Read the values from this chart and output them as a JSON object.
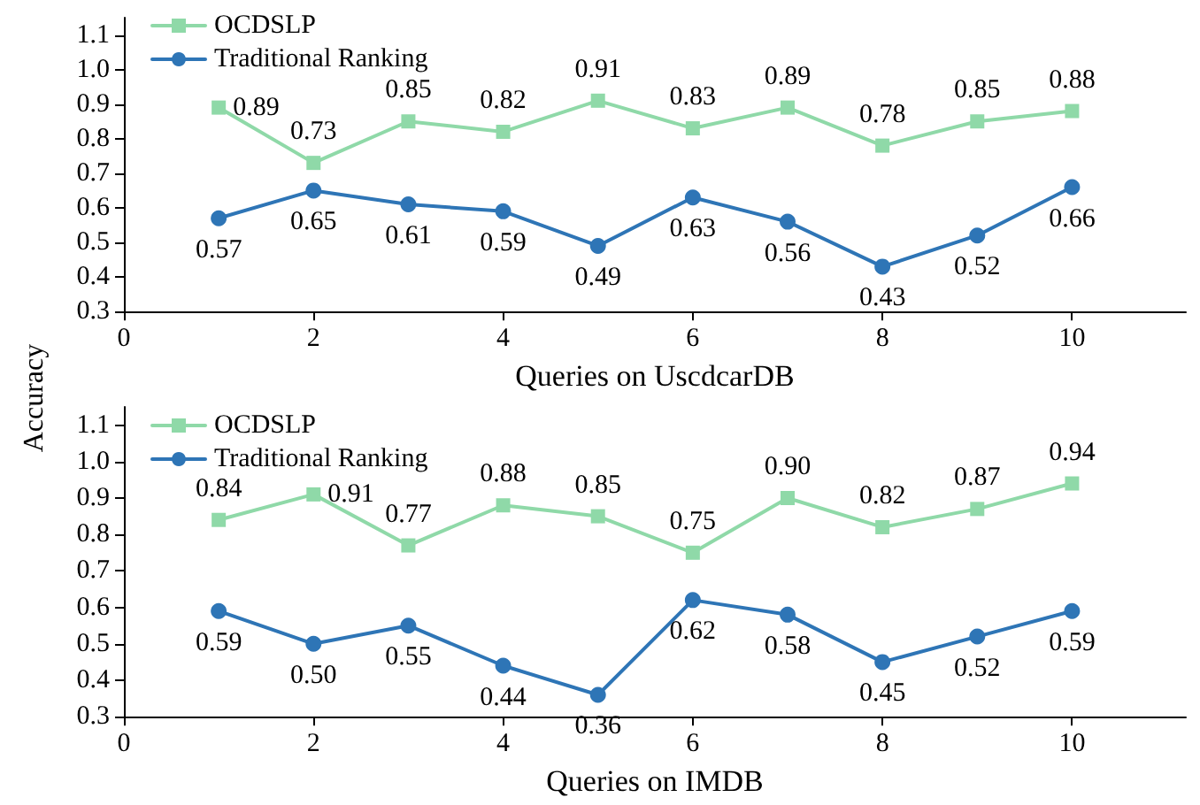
{
  "chart_data": [
    {
      "type": "line",
      "xlabel": "Queries on UscdcarDB",
      "ylabel": "Accuracy",
      "x": [
        1,
        2,
        3,
        4,
        5,
        6,
        7,
        8,
        9,
        10
      ],
      "series": [
        {
          "name": "OCDSLP",
          "color": "#8fd9a8",
          "marker": "square",
          "values": [
            0.89,
            0.73,
            0.85,
            0.82,
            0.91,
            0.83,
            0.89,
            0.78,
            0.85,
            0.88
          ],
          "value_labels": [
            "0.89",
            "0.73",
            "0.85",
            "0.82",
            "0.91",
            "0.83",
            "0.89",
            "0.78",
            "0.85",
            "0.88"
          ]
        },
        {
          "name": "Traditional Ranking",
          "color": "#2e75b6",
          "marker": "circle",
          "values": [
            0.57,
            0.65,
            0.61,
            0.59,
            0.49,
            0.63,
            0.56,
            0.43,
            0.52,
            0.66
          ],
          "value_labels": [
            "0.57",
            "0.65",
            "0.61",
            "0.59",
            "0.49",
            "0.63",
            "0.56",
            "0.43",
            "0.52",
            "0.66"
          ]
        }
      ],
      "xlim": [
        0,
        11.2
      ],
      "xticks": [
        0,
        2,
        4,
        6,
        8,
        10
      ],
      "ylim": [
        0.3,
        1.15
      ],
      "yticks": [
        0.3,
        0.4,
        0.5,
        0.6,
        0.7,
        0.8,
        0.9,
        {
          "value": 1,
          "label": "1.0"
        },
        1.1
      ],
      "grid": false,
      "legend": "top left"
    },
    {
      "type": "line",
      "xlabel": "Queries on IMDB",
      "x": [
        1,
        2,
        3,
        4,
        5,
        6,
        7,
        8,
        9,
        10
      ],
      "series": [
        {
          "name": "OCDSLP",
          "color": "#8fd9a8",
          "marker": "square",
          "values": [
            0.84,
            0.91,
            0.77,
            0.88,
            0.85,
            0.75,
            0.9,
            0.82,
            0.87,
            0.94
          ],
          "value_labels": [
            "0.84",
            "0.91",
            "0.77",
            "0.88",
            "0.85",
            "0.75",
            "0.90",
            "0.82",
            "0.87",
            "0.94"
          ]
        },
        {
          "name": "Traditional Ranking",
          "color": "#2e75b6",
          "marker": "circle",
          "values": [
            0.59,
            0.5,
            0.55,
            0.44,
            0.36,
            0.62,
            0.58,
            0.45,
            0.52,
            0.59
          ],
          "value_labels": [
            "0.59",
            "0.50",
            "0.55",
            "0.44",
            "0.36",
            "0.62",
            "0.58",
            "0.45",
            "0.52",
            "0.59"
          ]
        }
      ],
      "xlim": [
        0,
        11.2
      ],
      "xticks": [
        0,
        2,
        4,
        6,
        8,
        10
      ],
      "ylim": [
        0.3,
        1.15
      ],
      "yticks": [
        0.3,
        0.4,
        0.5,
        0.6,
        0.7,
        0.8,
        0.9,
        {
          "value": 1,
          "label": "1.0"
        },
        1.1
      ],
      "grid": false,
      "legend": "top left"
    }
  ]
}
